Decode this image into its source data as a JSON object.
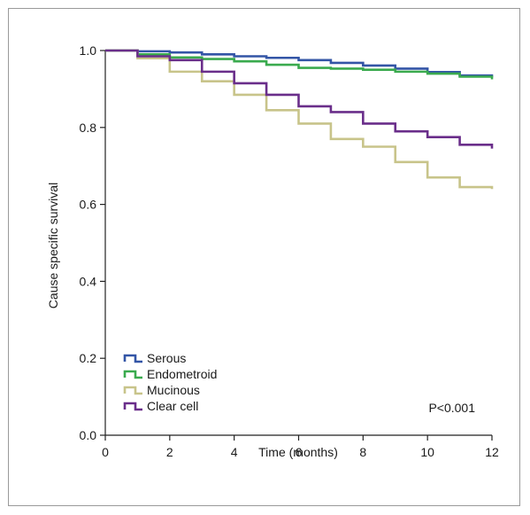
{
  "chart_data": {
    "type": "line",
    "step": true,
    "xlabel": "Time (months)",
    "ylabel": "Cause specific survival",
    "xlim": [
      0,
      12
    ],
    "ylim": [
      0,
      1.0
    ],
    "x_ticks": [
      "0",
      "2",
      "4",
      "6",
      "8",
      "10",
      "12"
    ],
    "y_ticks": [
      "0.0",
      "0.2",
      "0.4",
      "0.6",
      "0.8",
      "1.0"
    ],
    "grid": false,
    "legend_position": "bottom-left",
    "annotation": "P<0.001",
    "series": [
      {
        "name": "Serous",
        "color": "#3355a6",
        "points": [
          [
            0,
            1.0
          ],
          [
            1,
            0.998
          ],
          [
            2,
            0.995
          ],
          [
            3,
            0.99
          ],
          [
            4,
            0.985
          ],
          [
            5,
            0.981
          ],
          [
            6,
            0.975
          ],
          [
            7,
            0.968
          ],
          [
            8,
            0.961
          ],
          [
            9,
            0.953
          ],
          [
            10,
            0.944
          ],
          [
            11,
            0.935
          ],
          [
            12,
            0.93
          ]
        ]
      },
      {
        "name": "Endometroid",
        "color": "#3aaa4e",
        "points": [
          [
            0,
            1.0
          ],
          [
            1,
            0.99
          ],
          [
            2,
            0.982
          ],
          [
            3,
            0.978
          ],
          [
            4,
            0.972
          ],
          [
            5,
            0.963
          ],
          [
            6,
            0.955
          ],
          [
            7,
            0.953
          ],
          [
            8,
            0.95
          ],
          [
            9,
            0.945
          ],
          [
            10,
            0.94
          ],
          [
            11,
            0.932
          ],
          [
            12,
            0.925
          ]
        ]
      },
      {
        "name": "Mucinous",
        "color": "#c8c48a",
        "points": [
          [
            0,
            1.0
          ],
          [
            1,
            0.98
          ],
          [
            2,
            0.945
          ],
          [
            3,
            0.92
          ],
          [
            4,
            0.885
          ],
          [
            5,
            0.845
          ],
          [
            6,
            0.81
          ],
          [
            7,
            0.77
          ],
          [
            8,
            0.75
          ],
          [
            9,
            0.71
          ],
          [
            10,
            0.67
          ],
          [
            11,
            0.645
          ],
          [
            12,
            0.64
          ]
        ]
      },
      {
        "name": "Clear cell",
        "color": "#6a2e8a",
        "points": [
          [
            0,
            1.0
          ],
          [
            1,
            0.985
          ],
          [
            2,
            0.975
          ],
          [
            3,
            0.945
          ],
          [
            4,
            0.915
          ],
          [
            5,
            0.885
          ],
          [
            6,
            0.855
          ],
          [
            7,
            0.84
          ],
          [
            8,
            0.81
          ],
          [
            9,
            0.79
          ],
          [
            10,
            0.775
          ],
          [
            11,
            0.755
          ],
          [
            12,
            0.745
          ]
        ]
      }
    ]
  }
}
